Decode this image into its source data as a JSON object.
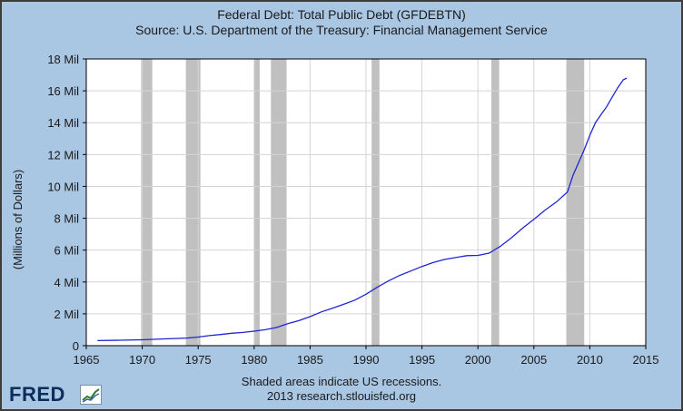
{
  "chart_data": {
    "type": "line",
    "title": "Federal Debt: Total Public Debt (GFDEBTN)",
    "subtitle": "Source: U.S. Department of the Treasury: Financial Management Service",
    "xlabel": "",
    "ylabel": "(Millions of Dollars)",
    "xlim": [
      1965,
      2015
    ],
    "ylim": [
      0,
      18
    ],
    "x_ticks": [
      1965,
      1970,
      1975,
      1980,
      1985,
      1990,
      1995,
      2000,
      2005,
      2010,
      2015
    ],
    "y_ticks": [
      {
        "value": 0,
        "label": "0"
      },
      {
        "value": 2,
        "label": "2 Mil"
      },
      {
        "value": 4,
        "label": "4 Mil"
      },
      {
        "value": 6,
        "label": "6 Mil"
      },
      {
        "value": 8,
        "label": "8 Mil"
      },
      {
        "value": 10,
        "label": "10 Mil"
      },
      {
        "value": 12,
        "label": "12 Mil"
      },
      {
        "value": 14,
        "label": "14 Mil"
      },
      {
        "value": 16,
        "label": "16 Mil"
      },
      {
        "value": 18,
        "label": "18 Mil"
      }
    ],
    "grid": true,
    "series": [
      {
        "name": "GFDEBTN",
        "color": "#1f24d6",
        "x": [
          1966.0,
          1968.0,
          1970.0,
          1972.0,
          1974.0,
          1975.0,
          1976.0,
          1977.0,
          1978.0,
          1979.0,
          1980.0,
          1981.0,
          1982.0,
          1983.0,
          1984.0,
          1985.0,
          1986.0,
          1987.0,
          1988.0,
          1989.0,
          1990.0,
          1991.0,
          1992.0,
          1993.0,
          1994.0,
          1995.0,
          1996.0,
          1997.0,
          1998.0,
          1999.0,
          2000.0,
          2001.0,
          2002.0,
          2003.0,
          2004.0,
          2005.0,
          2006.0,
          2007.0,
          2008.0,
          2008.5,
          2009.0,
          2009.5,
          2010.0,
          2010.5,
          2011.0,
          2011.5,
          2012.0,
          2012.5,
          2013.0,
          2013.3
        ],
        "values": [
          0.32,
          0.34,
          0.37,
          0.43,
          0.48,
          0.54,
          0.63,
          0.7,
          0.78,
          0.83,
          0.91,
          1.0,
          1.14,
          1.38,
          1.57,
          1.82,
          2.12,
          2.35,
          2.6,
          2.86,
          3.23,
          3.67,
          4.06,
          4.41,
          4.69,
          4.97,
          5.22,
          5.41,
          5.53,
          5.65,
          5.67,
          5.81,
          6.23,
          6.78,
          7.38,
          7.93,
          8.51,
          9.01,
          9.65,
          10.7,
          11.5,
          12.3,
          13.2,
          14.0,
          14.5,
          15.0,
          15.6,
          16.2,
          16.7,
          16.8
        ]
      }
    ],
    "recessions": [
      {
        "start": 1969.9,
        "end": 1970.9
      },
      {
        "start": 1973.9,
        "end": 1975.2
      },
      {
        "start": 1980.0,
        "end": 1980.5
      },
      {
        "start": 1981.5,
        "end": 1982.9
      },
      {
        "start": 1990.5,
        "end": 1991.2
      },
      {
        "start": 2001.2,
        "end": 2001.9
      },
      {
        "start": 2007.9,
        "end": 2009.5
      }
    ]
  },
  "notes": {
    "recession_note": "Shaded areas indicate US recessions.",
    "credit": "2013 research.stlouisfed.org"
  },
  "logo": {
    "text": "FRED"
  }
}
